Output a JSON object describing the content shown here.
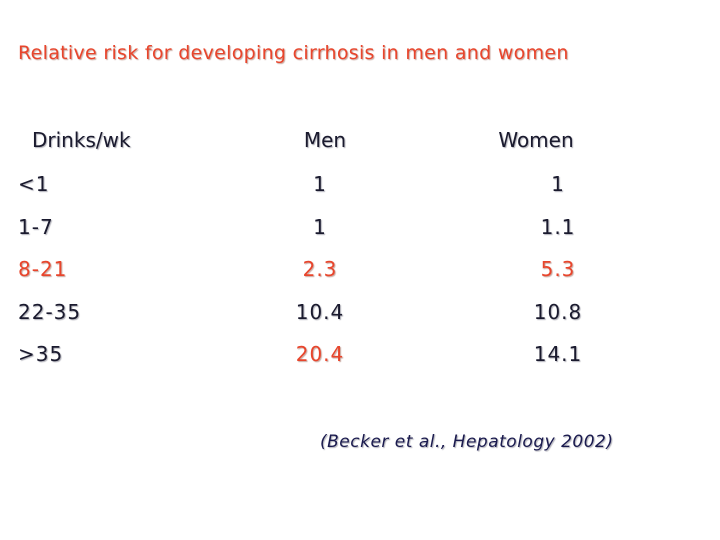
{
  "header": {
    "title": "Relative risk for developing cirrhosis in men and women"
  },
  "table": {
    "columns": [
      "Drinks/wk",
      "Men",
      "Women"
    ],
    "rows": [
      [
        "<1",
        "1",
        "1"
      ],
      [
        "1-7",
        "1",
        "1.1"
      ],
      [
        "8-21",
        "2.3",
        "5.3"
      ],
      [
        "22-35",
        "10.4",
        "10.8"
      ],
      [
        ">35",
        "20.4",
        "14.1"
      ]
    ]
  },
  "citation": "(Becker et al., Hepatology 2002)"
}
